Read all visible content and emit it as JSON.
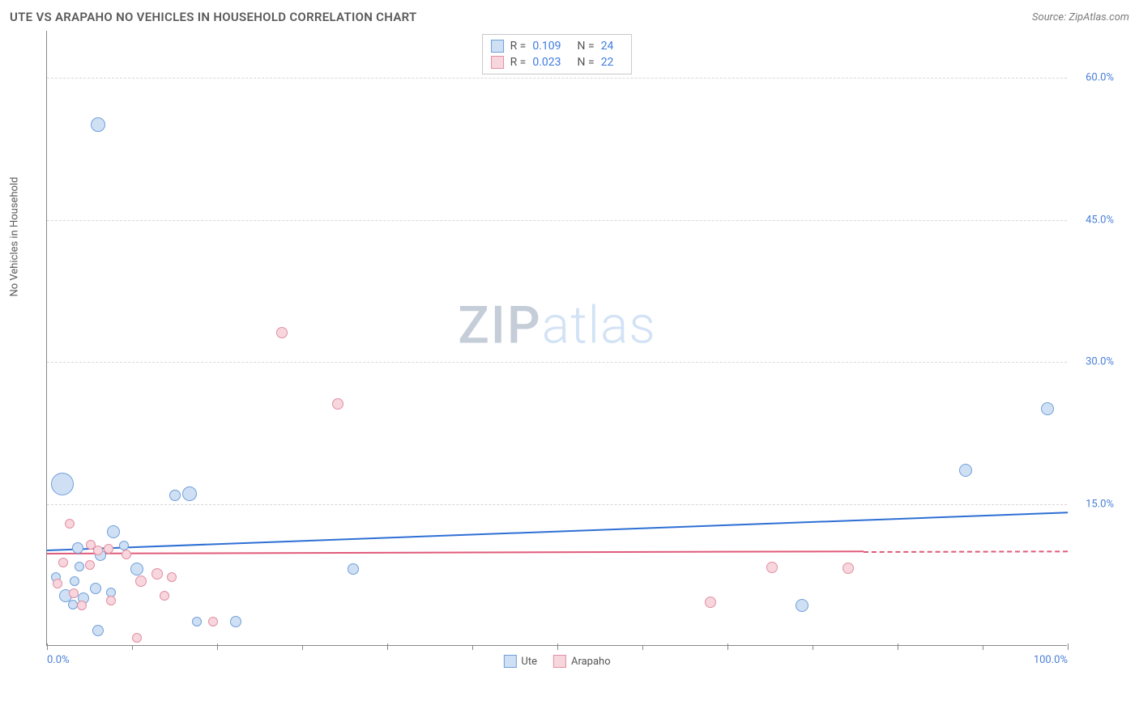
{
  "title": "UTE VS ARAPAHO NO VEHICLES IN HOUSEHOLD CORRELATION CHART",
  "source": "Source: ZipAtlas.com",
  "y_label": "No Vehicles in Household",
  "watermark": {
    "a": "ZIP",
    "b": "atlas"
  },
  "chart": {
    "type": "scatter",
    "xlim": [
      0,
      100
    ],
    "ylim": [
      0,
      65
    ],
    "y_ticks": [
      15,
      30,
      45,
      60
    ],
    "y_tick_labels": [
      "15.0%",
      "30.0%",
      "45.0%",
      "60.0%"
    ],
    "x_ticks": [
      0,
      16.7,
      33.3,
      50,
      66.7,
      83.3,
      100
    ],
    "x_minor_ticks": [
      8.3,
      25,
      41.7,
      58.3,
      75,
      91.7
    ],
    "x_tick_labels": {
      "0": "0.0%",
      "100": "100.0%"
    },
    "background_color": "#ffffff",
    "grid_color": "#d8d8d8",
    "axis_color": "#888888",
    "series": [
      {
        "name": "Ute",
        "fill": "#cfe0f5",
        "stroke": "#6f9fd8",
        "stats": {
          "R": "0.109",
          "N": "24"
        },
        "trend": {
          "x1": 0,
          "y1": 10.2,
          "x2": 100,
          "y2": 14.2,
          "color": "#2e6fd4",
          "solid_until": 100
        },
        "points": [
          {
            "x": 5,
            "y": 55,
            "r": 9
          },
          {
            "x": 1.5,
            "y": 17,
            "r": 14
          },
          {
            "x": 14,
            "y": 16,
            "r": 9
          },
          {
            "x": 12.5,
            "y": 15.8,
            "r": 7
          },
          {
            "x": 6.5,
            "y": 12,
            "r": 8
          },
          {
            "x": 3,
            "y": 10.3,
            "r": 7
          },
          {
            "x": 5.2,
            "y": 9.5,
            "r": 7
          },
          {
            "x": 30,
            "y": 8,
            "r": 7
          },
          {
            "x": 8.8,
            "y": 8,
            "r": 8
          },
          {
            "x": 2.7,
            "y": 6.8,
            "r": 6
          },
          {
            "x": 4.8,
            "y": 6,
            "r": 7
          },
          {
            "x": 6.3,
            "y": 5.6,
            "r": 6
          },
          {
            "x": 1.8,
            "y": 5.2,
            "r": 8
          },
          {
            "x": 3.6,
            "y": 5,
            "r": 7
          },
          {
            "x": 18.5,
            "y": 2.5,
            "r": 7
          },
          {
            "x": 14.7,
            "y": 2.5,
            "r": 6
          },
          {
            "x": 5,
            "y": 1.5,
            "r": 7
          },
          {
            "x": 2.5,
            "y": 4.3,
            "r": 6
          },
          {
            "x": 74,
            "y": 4.2,
            "r": 8
          },
          {
            "x": 90,
            "y": 18.5,
            "r": 8
          },
          {
            "x": 98,
            "y": 25,
            "r": 8
          },
          {
            "x": 7.5,
            "y": 10.5,
            "r": 6
          },
          {
            "x": 3.2,
            "y": 8.3,
            "r": 6
          },
          {
            "x": 0.9,
            "y": 7.2,
            "r": 6
          }
        ]
      },
      {
        "name": "Arapaho",
        "fill": "#f7d6de",
        "stroke": "#e28fa2",
        "stats": {
          "R": "0.023",
          "N": "22"
        },
        "trend": {
          "x1": 0,
          "y1": 9.8,
          "x2": 100,
          "y2": 10.1,
          "color": "#e05a7a",
          "solid_until": 80
        },
        "points": [
          {
            "x": 23,
            "y": 33,
            "r": 7
          },
          {
            "x": 28.5,
            "y": 25.5,
            "r": 7
          },
          {
            "x": 2.2,
            "y": 12.8,
            "r": 6
          },
          {
            "x": 5,
            "y": 10,
            "r": 6
          },
          {
            "x": 6,
            "y": 10.2,
            "r": 6
          },
          {
            "x": 7.8,
            "y": 9.6,
            "r": 6
          },
          {
            "x": 4.2,
            "y": 8.5,
            "r": 6
          },
          {
            "x": 10.8,
            "y": 7.5,
            "r": 7
          },
          {
            "x": 9.2,
            "y": 6.8,
            "r": 7
          },
          {
            "x": 12.2,
            "y": 7.2,
            "r": 6
          },
          {
            "x": 11.5,
            "y": 5.2,
            "r": 6
          },
          {
            "x": 71,
            "y": 8.2,
            "r": 7
          },
          {
            "x": 78.5,
            "y": 8.1,
            "r": 7
          },
          {
            "x": 65,
            "y": 4.5,
            "r": 7
          },
          {
            "x": 16.3,
            "y": 2.5,
            "r": 6
          },
          {
            "x": 8.8,
            "y": 0.8,
            "r": 6
          },
          {
            "x": 3.4,
            "y": 4.2,
            "r": 6
          },
          {
            "x": 6.3,
            "y": 4.7,
            "r": 6
          },
          {
            "x": 1.6,
            "y": 8.7,
            "r": 6
          },
          {
            "x": 1.0,
            "y": 6.5,
            "r": 6
          },
          {
            "x": 2.6,
            "y": 5.5,
            "r": 6
          },
          {
            "x": 4.3,
            "y": 10.6,
            "r": 6
          }
        ]
      }
    ]
  },
  "legend": [
    {
      "label": "Ute",
      "fill": "#cfe0f5",
      "stroke": "#6f9fd8"
    },
    {
      "label": "Arapaho",
      "fill": "#f7d6de",
      "stroke": "#e28fa2"
    }
  ]
}
